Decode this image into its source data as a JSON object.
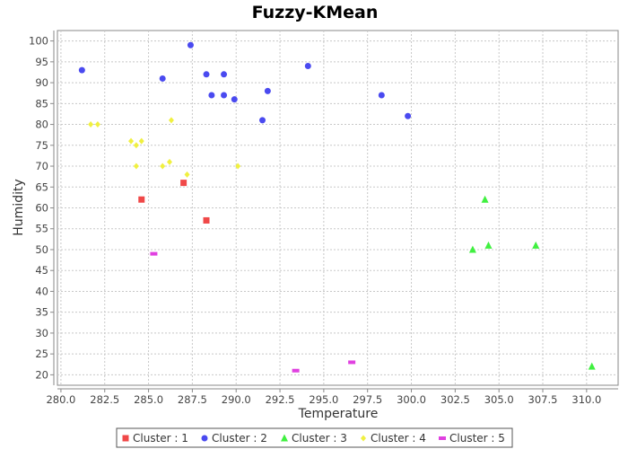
{
  "chart_data": {
    "type": "scatter",
    "title": "Fuzzy-KMean",
    "xlabel": "Temperature",
    "ylabel": "Humidity",
    "xlim": [
      279.8,
      311.8
    ],
    "ylim": [
      17.5,
      102.5
    ],
    "x_ticks": [
      "280.0",
      "282.5",
      "285.0",
      "287.5",
      "290.0",
      "292.5",
      "295.0",
      "297.5",
      "300.0",
      "302.5",
      "305.0",
      "307.5",
      "310.0"
    ],
    "y_ticks": [
      "20",
      "25",
      "30",
      "35",
      "40",
      "45",
      "50",
      "55",
      "60",
      "65",
      "70",
      "75",
      "80",
      "85",
      "90",
      "95",
      "100"
    ],
    "grid": true,
    "legend_position": "bottom",
    "series": [
      {
        "name": "Cluster : 1",
        "shape": "square",
        "color": "#f04848",
        "points": [
          [
            284.6,
            62
          ],
          [
            287.0,
            66
          ],
          [
            288.3,
            57
          ]
        ]
      },
      {
        "name": "Cluster : 2",
        "shape": "circle",
        "color": "#4a4af0",
        "points": [
          [
            281.2,
            93
          ],
          [
            285.8,
            91
          ],
          [
            287.4,
            99
          ],
          [
            288.3,
            92
          ],
          [
            288.6,
            87
          ],
          [
            289.3,
            92
          ],
          [
            289.3,
            87
          ],
          [
            289.9,
            86
          ],
          [
            291.5,
            81
          ],
          [
            291.8,
            88
          ],
          [
            294.1,
            94
          ],
          [
            298.3,
            87
          ],
          [
            299.8,
            82
          ]
        ]
      },
      {
        "name": "Cluster : 3",
        "shape": "triangle",
        "color": "#40f040",
        "points": [
          [
            303.5,
            50
          ],
          [
            304.2,
            62
          ],
          [
            304.4,
            51
          ],
          [
            307.1,
            51
          ],
          [
            310.3,
            22
          ]
        ]
      },
      {
        "name": "Cluster : 4",
        "shape": "diamond",
        "color": "#f0f040",
        "points": [
          [
            281.7,
            80
          ],
          [
            282.1,
            80
          ],
          [
            284.0,
            76
          ],
          [
            284.3,
            75
          ],
          [
            284.6,
            76
          ],
          [
            284.3,
            70
          ],
          [
            285.8,
            70
          ],
          [
            286.2,
            71
          ],
          [
            286.3,
            81
          ],
          [
            287.2,
            68
          ],
          [
            290.1,
            70
          ]
        ]
      },
      {
        "name": "Cluster : 5",
        "shape": "rect",
        "color": "#e040e0",
        "points": [
          [
            285.3,
            49
          ],
          [
            293.4,
            21
          ],
          [
            296.6,
            23
          ]
        ]
      }
    ]
  }
}
